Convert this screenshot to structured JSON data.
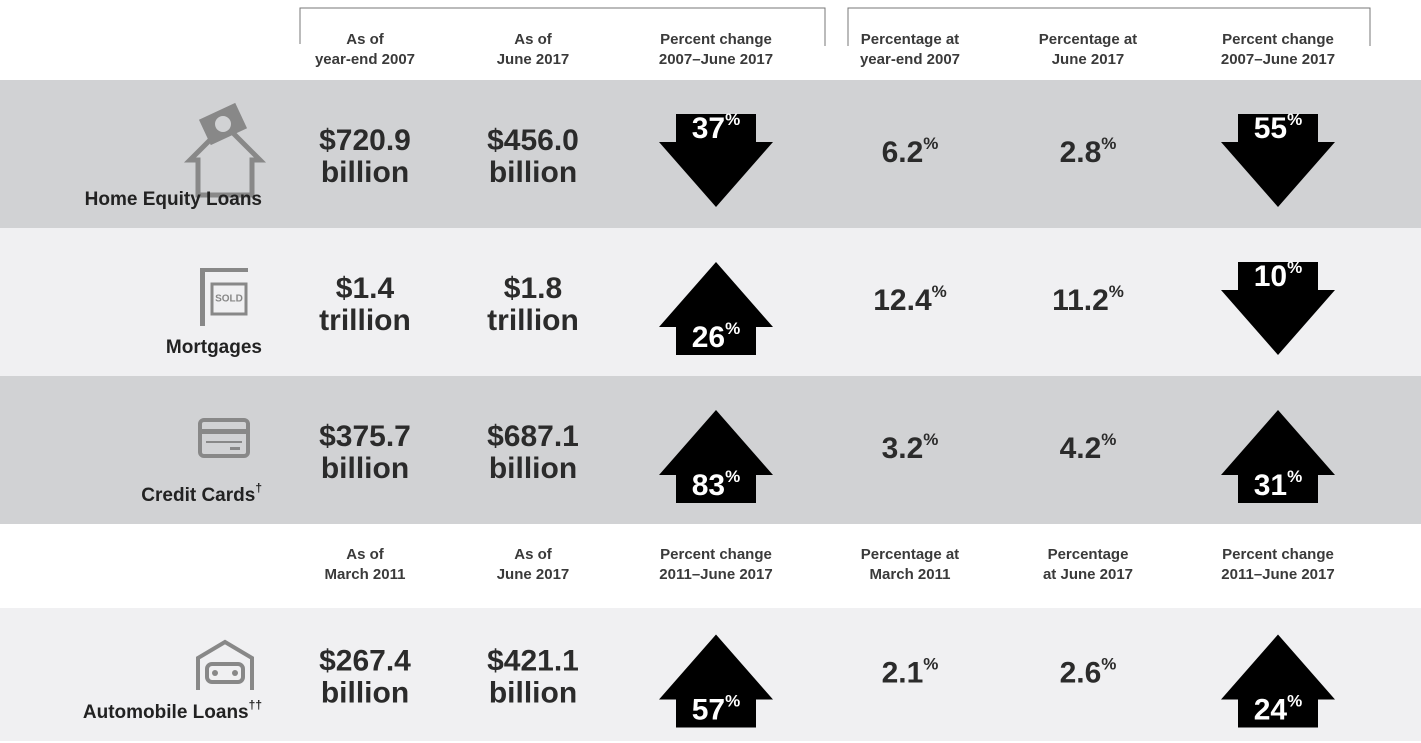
{
  "blocks": [
    {
      "headers": [
        [
          "As of",
          "year-end 2007"
        ],
        [
          "As of",
          "June 2017"
        ],
        [
          "Percent change",
          "2007–June 2017"
        ],
        [
          "Percentage at",
          "year-end 2007"
        ],
        [
          "Percentage at",
          "June 2017"
        ],
        [
          "Percent change",
          "2007–June 2017"
        ]
      ],
      "rows": [
        {
          "label": "Home Equity Loans",
          "cells": [
            {
              "amount": "$720.9",
              "unit": "billion"
            },
            {
              "amount": "$456.0",
              "unit": "billion"
            },
            {
              "value": "37",
              "unit": "%",
              "arrow": "down"
            },
            {
              "value": "6.2",
              "unit": "%"
            },
            {
              "value": "2.8",
              "unit": "%"
            },
            {
              "value": "55",
              "unit": "%",
              "arrow": "down"
            }
          ]
        },
        {
          "label": "Mortgages",
          "cells": [
            {
              "amount": "$1.4",
              "unit": "trillion"
            },
            {
              "amount": "$1.8",
              "unit": "trillion"
            },
            {
              "value": "26",
              "unit": "%",
              "arrow": "up"
            },
            {
              "value": "12.4",
              "unit": "%"
            },
            {
              "value": "11.2",
              "unit": "%"
            },
            {
              "value": "10",
              "unit": "%",
              "arrow": "down"
            }
          ]
        },
        {
          "label": "Credit Cards",
          "note": "†",
          "cells": [
            {
              "amount": "$375.7",
              "unit": "billion"
            },
            {
              "amount": "$687.1",
              "unit": "billion"
            },
            {
              "value": "83",
              "unit": "%",
              "arrow": "up"
            },
            {
              "value": "3.2",
              "unit": "%"
            },
            {
              "value": "4.2",
              "unit": "%"
            },
            {
              "value": "31",
              "unit": "%",
              "arrow": "up"
            }
          ]
        }
      ]
    },
    {
      "headers": [
        [
          "As of",
          "March 2011"
        ],
        [
          "As of",
          "June 2017"
        ],
        [
          "Percent change",
          "2011–June 2017"
        ],
        [
          "Percentage at",
          "March 2011"
        ],
        [
          "Percentage",
          "at June 2017"
        ],
        [
          "Percent change",
          "2011–June 2017"
        ]
      ],
      "rows": [
        {
          "label": "Automobile Loans",
          "note": "††",
          "cells": [
            {
              "amount": "$267.4",
              "unit": "billion"
            },
            {
              "amount": "$421.1",
              "unit": "billion"
            },
            {
              "value": "57",
              "unit": "%",
              "arrow": "up"
            },
            {
              "value": "2.1",
              "unit": "%"
            },
            {
              "value": "2.6",
              "unit": "%"
            },
            {
              "value": "24",
              "unit": "%",
              "arrow": "up"
            }
          ]
        }
      ]
    }
  ]
}
